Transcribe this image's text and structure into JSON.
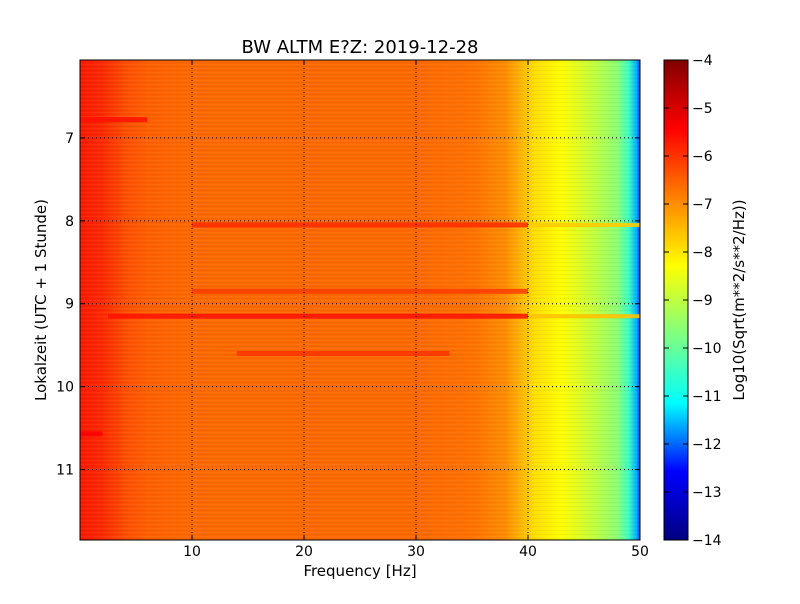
{
  "chart_data": {
    "type": "heatmap",
    "title": "BW ALTM E?Z: 2019-12-28",
    "xlabel": "Frequency [Hz]",
    "ylabel": "Lokalzeit (UTC + 1 Stunde)",
    "xlim": [
      0,
      50
    ],
    "ylim": [
      11.85,
      6.06
    ],
    "y_inverted": true,
    "xticks": [
      10,
      20,
      30,
      40,
      50
    ],
    "yticks": [
      7,
      8,
      9,
      10,
      11
    ],
    "grid": true,
    "grid_style": "dotted",
    "colormap": "jet",
    "colorbar": {
      "label": "Log10(Sqrt(m**2/s**2/Hz))",
      "range": [
        -14,
        -4
      ],
      "ticks": [
        -4,
        -5,
        -6,
        -7,
        -8,
        -9,
        -10,
        -11,
        -12,
        -13,
        -14
      ]
    },
    "frequency_profile": [
      {
        "hz": 0,
        "value": -5.7
      },
      {
        "hz": 2,
        "value": -5.9
      },
      {
        "hz": 4,
        "value": -6.3
      },
      {
        "hz": 6,
        "value": -6.5
      },
      {
        "hz": 10,
        "value": -6.6
      },
      {
        "hz": 20,
        "value": -6.6
      },
      {
        "hz": 30,
        "value": -6.6
      },
      {
        "hz": 35,
        "value": -6.7
      },
      {
        "hz": 38,
        "value": -7.0
      },
      {
        "hz": 39.5,
        "value": -7.5
      },
      {
        "hz": 40.5,
        "value": -7.9
      },
      {
        "hz": 43,
        "value": -8.3
      },
      {
        "hz": 46,
        "value": -9.0
      },
      {
        "hz": 48,
        "value": -9.6
      },
      {
        "hz": 49,
        "value": -10.5
      },
      {
        "hz": 49.7,
        "value": -11.6
      },
      {
        "hz": 50,
        "value": -12.3
      }
    ],
    "bands": [
      {
        "time": 9.15,
        "hz_start": 2.5,
        "hz_end": 50,
        "value": -5.6,
        "tail_value": -7.6
      },
      {
        "time": 8.05,
        "hz_start": 10,
        "hz_end": 50,
        "value": -5.9,
        "tail_value": -7.7
      },
      {
        "time": 9.6,
        "hz_start": 14,
        "hz_end": 33,
        "value": -6.0
      },
      {
        "time": 8.85,
        "hz_start": 10,
        "hz_end": 40,
        "value": -6.1
      },
      {
        "time": 6.78,
        "hz_start": 0,
        "hz_end": 6,
        "value": -5.6
      },
      {
        "time": 10.57,
        "hz_start": 0,
        "hz_end": 2,
        "value": -5.4
      }
    ],
    "colors": {
      "jet": [
        "#000080",
        "#0000ff",
        "#00ffff",
        "#80ff80",
        "#ffff00",
        "#ff8000",
        "#ff0000",
        "#800000"
      ],
      "grid": "#000000",
      "frame": "#000000"
    }
  }
}
